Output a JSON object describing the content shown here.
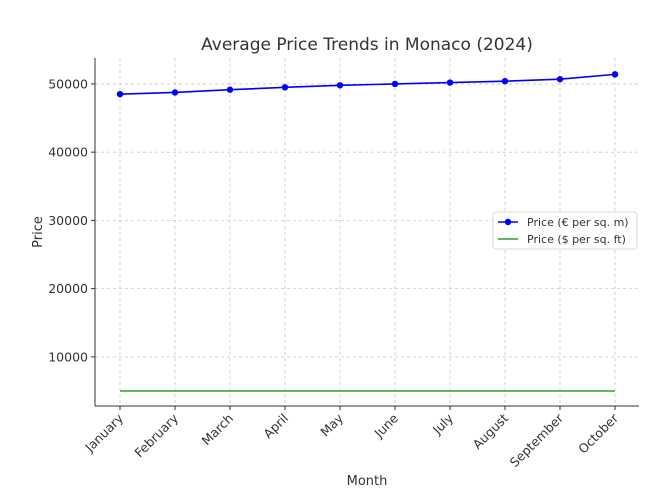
{
  "chart_data": {
    "type": "line",
    "title": "Average Price Trends in Monaco (2024)",
    "xlabel": "Month",
    "ylabel": "Price",
    "categories": [
      "January",
      "February",
      "March",
      "April",
      "May",
      "June",
      "July",
      "August",
      "September",
      "October"
    ],
    "ylim": [
      2800,
      53800
    ],
    "yticks": [
      10000,
      20000,
      30000,
      40000,
      50000
    ],
    "grid": true,
    "legend_position": "center-right",
    "series": [
      {
        "name": "Price (€ per sq. m)",
        "color": "#0000ff",
        "marker": "circle",
        "values": [
          48500,
          48750,
          49150,
          49500,
          49800,
          50000,
          50200,
          50400,
          50700,
          51400
        ]
      },
      {
        "name": "Price ($ per sq. ft)",
        "color": "#2ca02c",
        "marker": "none",
        "values": [
          5000,
          5000,
          5000,
          5000,
          5000,
          5000,
          5000,
          5000,
          5000,
          5000
        ]
      }
    ]
  }
}
